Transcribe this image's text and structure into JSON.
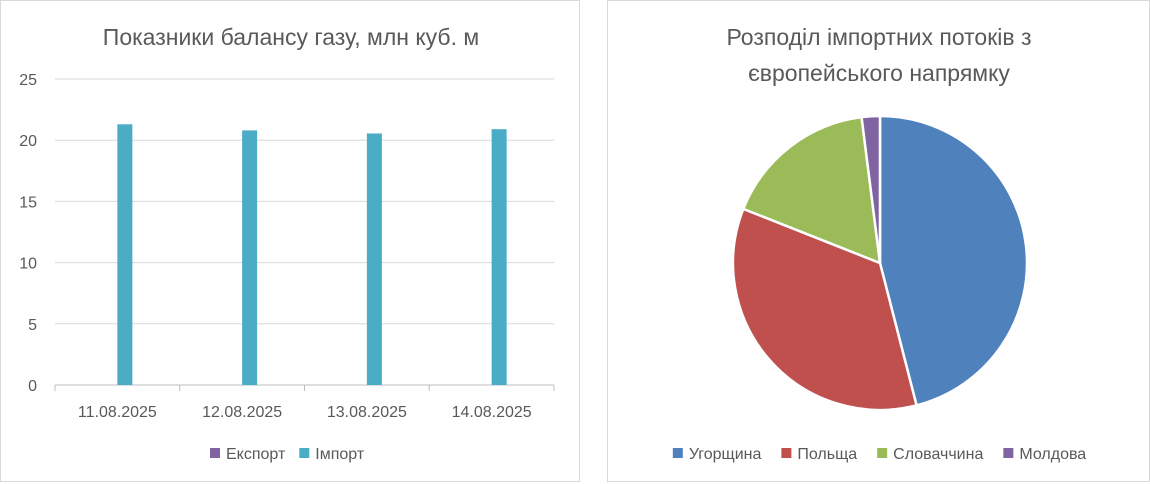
{
  "chart_data": [
    {
      "type": "bar",
      "title": "Показники балансу газу, млн куб. м",
      "categories": [
        "11.08.2025",
        "12.08.2025",
        "13.08.2025",
        "14.08.2025"
      ],
      "series": [
        {
          "name": "Експорт",
          "color": "#8064a2",
          "values": [
            0,
            0,
            0,
            0
          ]
        },
        {
          "name": "Імпорт",
          "color": "#4bacc6",
          "values": [
            21.3,
            20.8,
            20.55,
            20.9
          ]
        }
      ],
      "ylim": [
        0,
        25
      ],
      "yticks": [
        "0",
        "5",
        "10",
        "15",
        "20",
        "25"
      ],
      "grid": true,
      "legend_position": "bottom"
    },
    {
      "type": "pie",
      "title": [
        "Розподіл імпортних потоків з",
        "європейського напрямку"
      ],
      "slices": [
        {
          "name": "Угорщина",
          "color": "#4f81bd",
          "value": 46
        },
        {
          "name": "Польща",
          "color": "#c0504d",
          "value": 35
        },
        {
          "name": "Словаччина",
          "color": "#9bbb59",
          "value": 17
        },
        {
          "name": "Молдова",
          "color": "#8064a2",
          "value": 2
        }
      ],
      "legend_position": "bottom"
    }
  ]
}
